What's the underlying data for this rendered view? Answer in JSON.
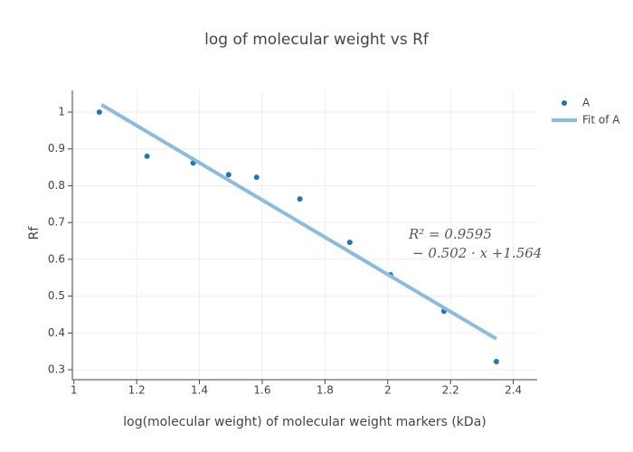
{
  "chart_data": {
    "type": "scatter",
    "title": "log of molecular weight vs Rf",
    "x_label": "log(molecular weight) of molecular weight markers (kDa)",
    "y_label": "Rf",
    "series": [
      {
        "name": "A",
        "color": "#1f77b4",
        "mode": "markers",
        "x": [
          1.081,
          1.233,
          1.38,
          1.493,
          1.582,
          1.72,
          1.879,
          2.009,
          2.179,
          2.346
        ],
        "values": [
          1.0,
          0.88,
          0.862,
          0.83,
          0.823,
          0.764,
          0.646,
          0.558,
          0.459,
          0.322
        ]
      },
      {
        "name": "Fit of A",
        "color": "#8cbbdc",
        "mode": "lines",
        "x": [
          1.088,
          2.346
        ],
        "values": [
          1.02,
          0.384
        ]
      }
    ],
    "annotations": [
      "R² = 0.9595",
      "− 0.502 · x +1.564"
    ],
    "xlim": [
      0.995,
      2.476
    ],
    "ylim": [
      0.273,
      1.059
    ],
    "xticks": [
      1,
      1.2,
      1.4,
      1.6,
      1.8,
      2,
      2.2,
      2.4
    ],
    "yticks": [
      0.3,
      0.4,
      0.5,
      0.6,
      0.7,
      0.8,
      0.9,
      1
    ],
    "grid": true,
    "legend": "top-right"
  }
}
